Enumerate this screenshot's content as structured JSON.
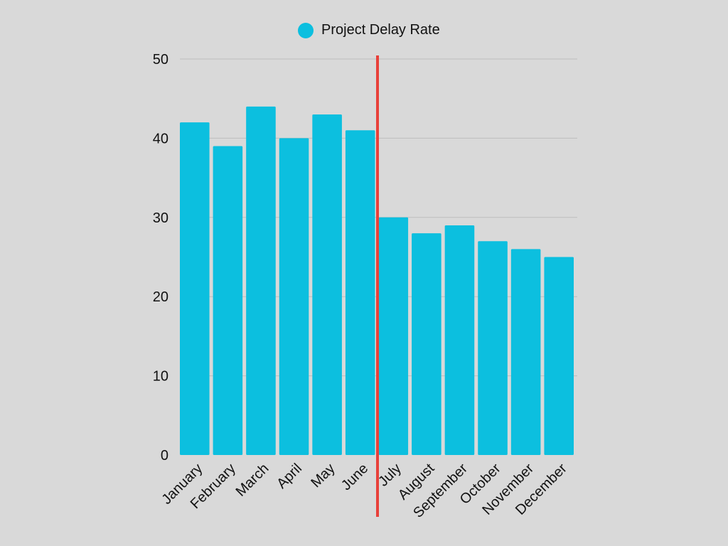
{
  "chart_data": {
    "type": "bar",
    "categories": [
      "January",
      "February",
      "March",
      "April",
      "May",
      "June",
      "July",
      "August",
      "September",
      "October",
      "November",
      "December"
    ],
    "series": [
      {
        "name": "Project Delay Rate",
        "values": [
          42,
          39,
          44,
          40,
          43,
          41,
          30,
          28,
          29,
          27,
          26,
          25
        ],
        "color": "#0cbfdf"
      }
    ],
    "ylim": [
      0,
      50
    ],
    "yticks": [
      0,
      10,
      20,
      30,
      40,
      50
    ],
    "grid": true,
    "legend_position": "top-center",
    "colors": {
      "background": "#d9d9d9",
      "grid": "#bdbdbd",
      "marker_line": "#e8403a",
      "text": "#111111"
    },
    "annotation": {
      "type": "vertical-line",
      "between_categories": [
        "June",
        "July"
      ]
    }
  }
}
